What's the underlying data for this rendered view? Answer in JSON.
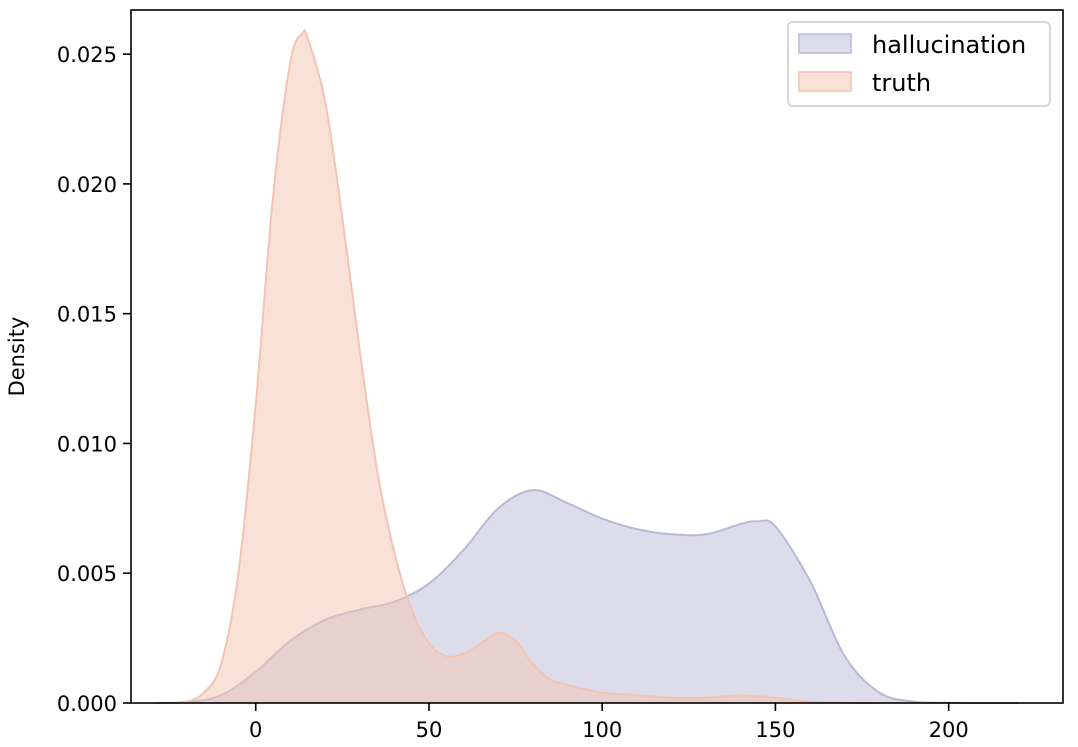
{
  "chart_data": {
    "type": "area",
    "title": "",
    "xlabel": "",
    "ylabel": "Density",
    "xlim": [
      -36,
      233
    ],
    "ylim": [
      0,
      0.0267
    ],
    "xticks": [
      0,
      50,
      100,
      150,
      200
    ],
    "yticks": [
      0,
      0.005,
      0.01,
      0.015,
      0.02,
      0.025
    ],
    "xtick_labels": [
      "0",
      "50",
      "100",
      "150",
      "200"
    ],
    "ytick_labels": [
      "0.000",
      "0.005",
      "0.010",
      "0.015",
      "0.020",
      "0.025"
    ],
    "grid": false,
    "legend": "top-right",
    "series": [
      {
        "name": "hallucination",
        "color": "#b9b9d6",
        "fill_opacity": 0.5,
        "x": [
          -28,
          -20,
          -10,
          0,
          10,
          20,
          30,
          40,
          50,
          60,
          70,
          80,
          90,
          100,
          110,
          120,
          130,
          140,
          145,
          150,
          160,
          170,
          180,
          190,
          200,
          210,
          220
        ],
        "y": [
          0,
          3e-05,
          0.0003,
          0.0012,
          0.0024,
          0.0032,
          0.0036,
          0.0039,
          0.0046,
          0.0059,
          0.0075,
          0.0082,
          0.0077,
          0.0071,
          0.0067,
          0.0065,
          0.0065,
          0.0069,
          0.007,
          0.0068,
          0.0047,
          0.0018,
          0.0004,
          5e-05,
          1e-05,
          0,
          0
        ]
      },
      {
        "name": "truth",
        "color": "#f3c4b2",
        "fill_opacity": 0.5,
        "x": [
          -28,
          -20,
          -15,
          -10,
          -5,
          0,
          5,
          10,
          13.5,
          15,
          20,
          25,
          30,
          35,
          40,
          45,
          50,
          55,
          60,
          65,
          70,
          75,
          80,
          85,
          90,
          100,
          110,
          120,
          130,
          140,
          150,
          160,
          170,
          180
        ],
        "y": [
          0,
          5e-05,
          0.0004,
          0.0015,
          0.005,
          0.0115,
          0.0195,
          0.0247,
          0.0258,
          0.0256,
          0.0232,
          0.0187,
          0.0136,
          0.009,
          0.0058,
          0.0036,
          0.0023,
          0.0018,
          0.0019,
          0.0023,
          0.0027,
          0.0024,
          0.0015,
          0.0009,
          0.0007,
          0.0004,
          0.0003,
          0.0002,
          0.0002,
          0.0003,
          0.0002,
          5e-05,
          1e-05,
          0
        ]
      }
    ]
  }
}
